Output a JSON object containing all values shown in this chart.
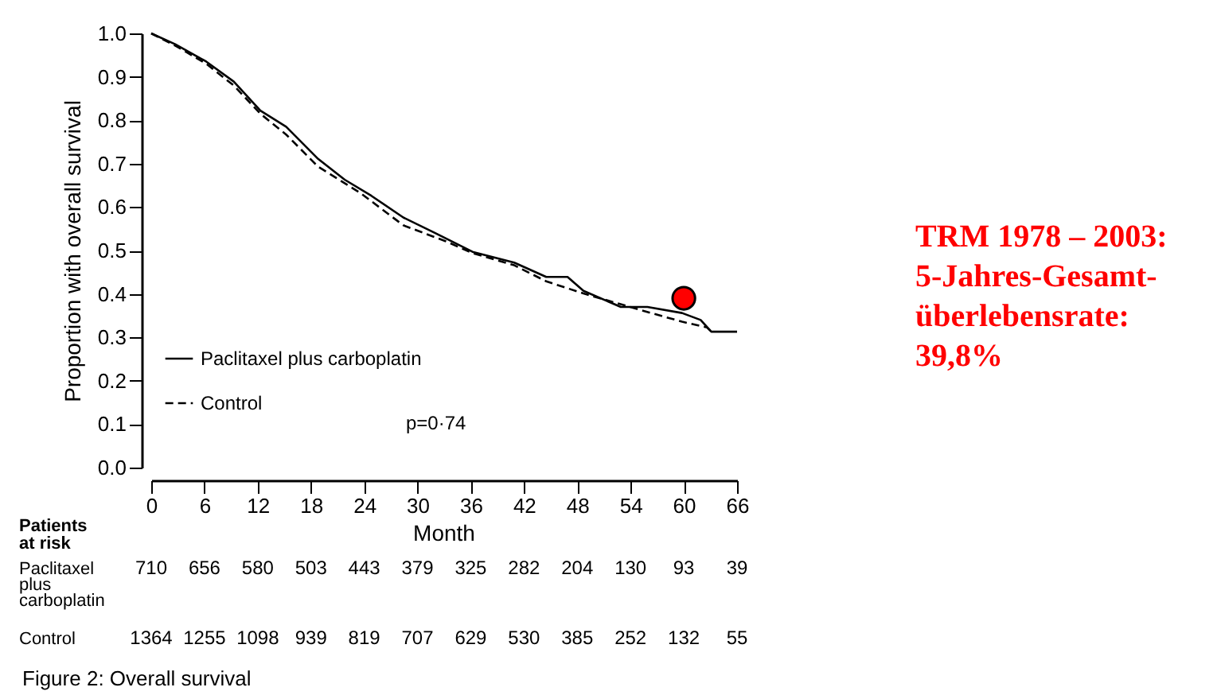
{
  "chart_data": {
    "type": "line",
    "xlabel": "Month",
    "ylabel": "Proportion with overall survival",
    "xlim": [
      0,
      66
    ],
    "xticks": [
      0,
      6,
      12,
      18,
      24,
      30,
      36,
      42,
      48,
      54,
      60,
      66
    ],
    "ylim": [
      0,
      1
    ],
    "yticks": [
      {
        "value": 0,
        "label": "0.0"
      },
      0.1,
      0.2,
      0.3,
      0.4,
      0.5,
      0.6,
      0.7,
      0.8,
      0.9,
      {
        "value": 1,
        "label": "1.0"
      }
    ],
    "grid": false,
    "legend": "bottom left",
    "series": [
      {
        "name": "Paclitaxel plus carboplatin",
        "color": "#000000",
        "line_style": "solid",
        "x": [
          0,
          2.7,
          6.2,
          9.3,
          12.3,
          15.2,
          18.8,
          21.8,
          24.8,
          28.4,
          32,
          36.2,
          40.9,
          44.5,
          46.9,
          48.7,
          52.9,
          55.9,
          59.8,
          61.9,
          63.1,
          66
        ],
        "values": [
          1.0,
          0.975,
          0.935,
          0.889,
          0.822,
          0.785,
          0.711,
          0.663,
          0.626,
          0.576,
          0.54,
          0.497,
          0.472,
          0.439,
          0.439,
          0.407,
          0.37,
          0.37,
          0.356,
          0.34,
          0.313,
          0.313
        ]
      },
      {
        "name": "Control",
        "color": "#000000",
        "line_style": "dashed",
        "x": [
          0,
          2.7,
          6.2,
          9.3,
          12.3,
          15.2,
          18.8,
          23.6,
          28.4,
          33.2,
          36.2,
          40.9,
          44.5,
          48.7,
          55.1,
          59.8,
          62.6,
          63.1
        ],
        "values": [
          1.0,
          0.972,
          0.93,
          0.88,
          0.815,
          0.767,
          0.693,
          0.632,
          0.558,
          0.521,
          0.494,
          0.466,
          0.429,
          0.401,
          0.363,
          0.336,
          0.323,
          0.313
        ]
      },
      {
        "type": "scatter",
        "color": "#ff0000",
        "marker": "circle",
        "x": [
          60
        ],
        "values": [
          0.39
        ]
      }
    ],
    "annotations": [
      "p=0·74",
      "Patients\nat risk",
      "Paclitaxel\nplus\ncarboplatin",
      "710",
      "656",
      "580",
      "503",
      "443",
      "379",
      "325",
      "282",
      "204",
      "130",
      "93",
      "39",
      "Control",
      "1364",
      "1255",
      "1098",
      "939",
      "819",
      "707",
      "629",
      "530",
      "385",
      "252",
      "132",
      "55",
      "Figure 2: Overall survival",
      "TRM 1978 – 2003:\n5-Jahres-Gesamt-\nüberlebensrate:\n39,8%"
    ]
  }
}
